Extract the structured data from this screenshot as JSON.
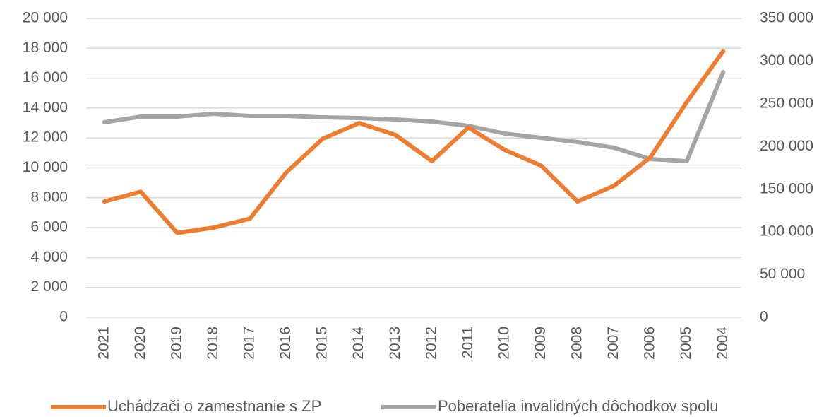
{
  "chart_data": {
    "type": "line",
    "categories": [
      "2021",
      "2020",
      "2019",
      "2018",
      "2017",
      "2016",
      "2015",
      "2014",
      "2013",
      "2012",
      "2011",
      "2010",
      "2009",
      "2008",
      "2007",
      "2006",
      "2005",
      "2004"
    ],
    "series": [
      {
        "name": "Uchádzači o zamestnanie s ZP",
        "color": "#ed7d31",
        "axis": "y",
        "values": [
          7750,
          8400,
          5650,
          6000,
          6600,
          9700,
          11950,
          13000,
          12200,
          10450,
          12700,
          11200,
          10150,
          7750,
          8800,
          10700,
          14400,
          17800
        ]
      },
      {
        "name": "Poberatelia invalidných dôchodkov spolu",
        "color": "#a5a5a5",
        "axis": "y2",
        "values": [
          228400,
          235000,
          235000,
          238300,
          235800,
          235800,
          234200,
          233300,
          231700,
          229200,
          224200,
          215100,
          210200,
          205200,
          198600,
          185300,
          182900,
          287100
        ]
      }
    ],
    "ylim": [
      0,
      20000
    ],
    "yticks": [
      0,
      {
        "value": 2000,
        "label": "2 000"
      },
      {
        "value": 4000,
        "label": "4 000"
      },
      {
        "value": 6000,
        "label": "6 000"
      },
      {
        "value": 8000,
        "label": "8 000"
      },
      {
        "value": 10000,
        "label": "10 000"
      },
      {
        "value": 12000,
        "label": "12 000"
      },
      {
        "value": 14000,
        "label": "14 000"
      },
      {
        "value": 16000,
        "label": "16 000"
      },
      {
        "value": 18000,
        "label": "18 000"
      },
      {
        "value": 20000,
        "label": "20 000"
      }
    ],
    "y2lim": [
      0,
      350000
    ],
    "y2ticks": [
      0,
      {
        "value": 50000,
        "label": "50 000"
      },
      {
        "value": 100000,
        "label": "100 000"
      },
      {
        "value": 150000,
        "label": "150 000"
      },
      {
        "value": 200000,
        "label": "200 000"
      },
      {
        "value": 250000,
        "label": "250 000"
      },
      {
        "value": 300000,
        "label": "300 000"
      },
      {
        "value": 350000,
        "label": "350 000"
      }
    ],
    "grid": true,
    "legend": "bottom"
  }
}
